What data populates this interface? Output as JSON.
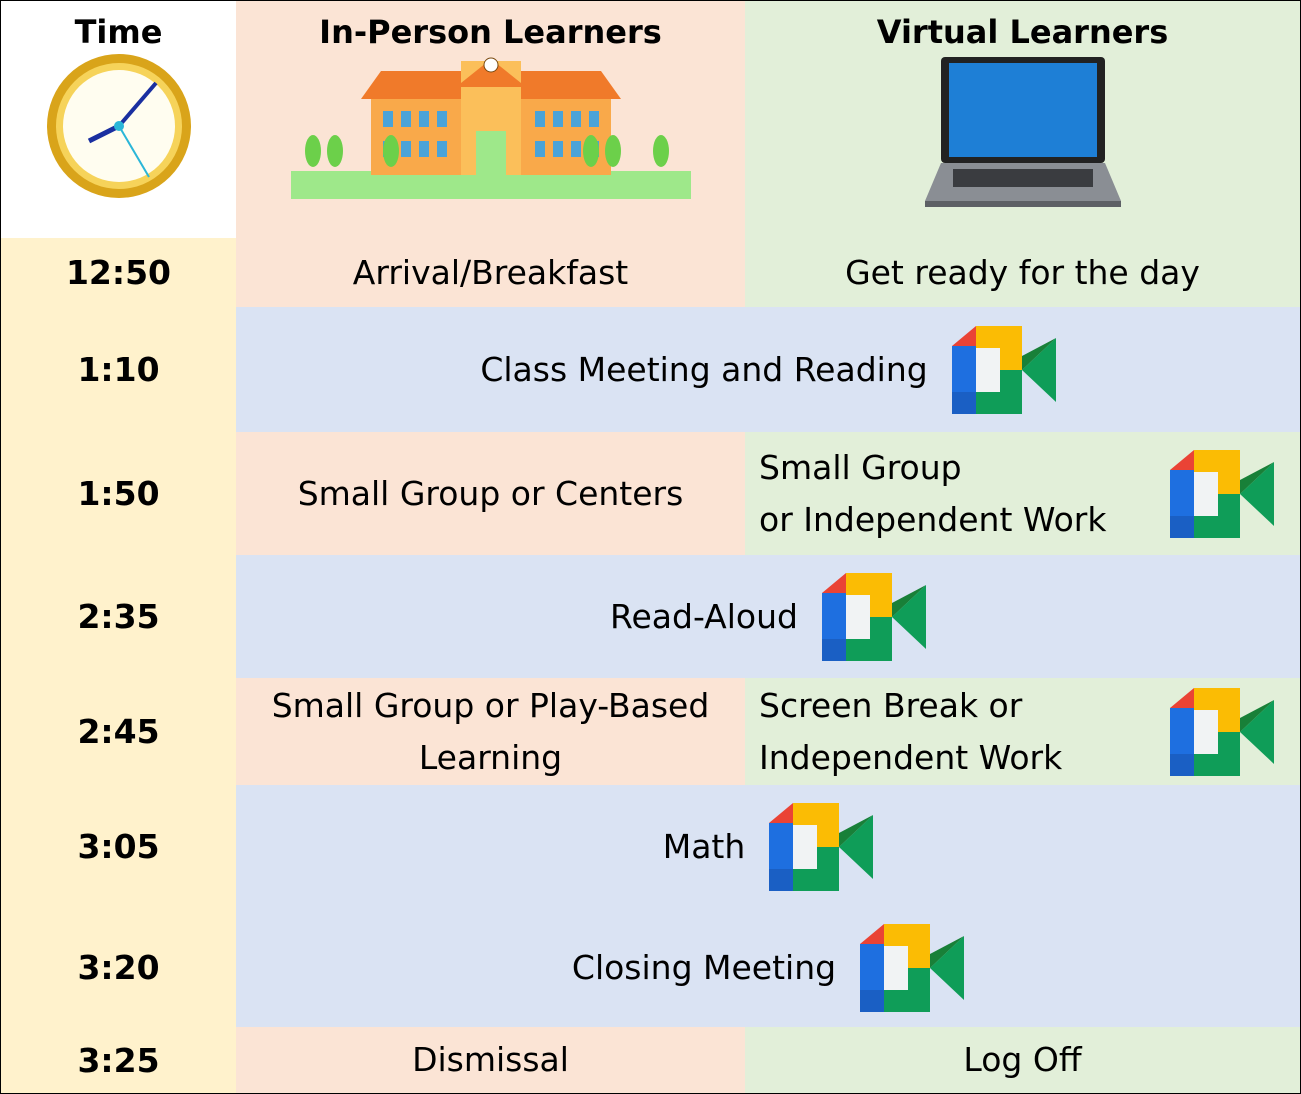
{
  "header": {
    "time": "Time",
    "in_person": "In-Person Learners",
    "virtual": "Virtual Learners"
  },
  "rows": [
    {
      "time": "12:50",
      "in_person": [
        "Arrival/Breakfast"
      ],
      "virtual": [
        "Get ready for the day"
      ]
    },
    {
      "time": "1:10",
      "shared": [
        "Class Meeting and Reading"
      ]
    },
    {
      "time": "1:50",
      "in_person": [
        "Small Group or Centers"
      ],
      "virtual": [
        "Small Group",
        "or Independent Work"
      ]
    },
    {
      "time": "2:35",
      "shared": [
        "Read-Aloud"
      ]
    },
    {
      "time": "2:45",
      "in_person": [
        "Small Group or Play-Based",
        "Learning"
      ],
      "virtual": [
        "Screen Break or",
        "Independent Work"
      ]
    },
    {
      "time": "3:05",
      "shared": [
        "Math"
      ]
    },
    {
      "time": "3:20",
      "shared": [
        "Closing Meeting"
      ]
    },
    {
      "time": "3:25",
      "in_person": [
        "Dismissal"
      ],
      "virtual": [
        "Log Off"
      ]
    }
  ]
}
